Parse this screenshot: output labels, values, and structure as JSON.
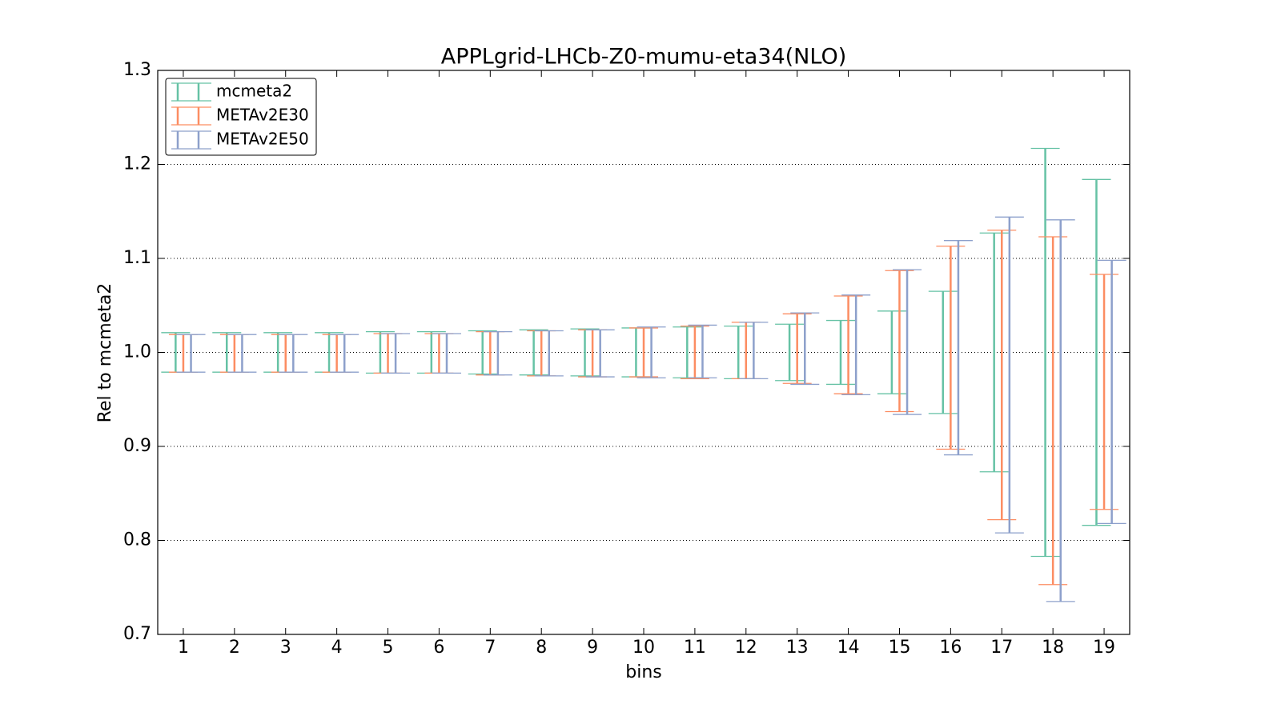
{
  "chart_data": {
    "type": "errorbar",
    "title": "APPLgrid-LHCb-Z0-mumu-eta34(NLO)",
    "x_label": "bins",
    "y_label": "Rel to mcmeta2",
    "x": [
      1,
      2,
      3,
      4,
      5,
      6,
      7,
      8,
      9,
      10,
      11,
      12,
      13,
      14,
      15,
      16,
      17,
      18,
      19
    ],
    "xlim": [
      0.5,
      19.5
    ],
    "xticks": [
      1,
      2,
      3,
      4,
      5,
      6,
      7,
      8,
      9,
      10,
      11,
      12,
      13,
      14,
      15,
      16,
      17,
      18,
      19
    ],
    "ylim": [
      0.7,
      1.3
    ],
    "yticks": [
      {
        "value": 0.7,
        "label": "0.7"
      },
      {
        "value": 0.8,
        "label": "0.8"
      },
      {
        "value": 0.9,
        "label": "0.9"
      },
      {
        "value": 1.0,
        "label": "1.0"
      },
      {
        "value": 1.1,
        "label": "1.1"
      },
      {
        "value": 1.2,
        "label": "1.2"
      },
      {
        "value": 1.3,
        "label": "1.3"
      }
    ],
    "grid": true,
    "legend": "upper left",
    "series": [
      {
        "name": "mcmeta2",
        "color": "#66c2a5",
        "values": [
          1,
          1,
          1,
          1,
          1,
          1,
          1,
          1,
          1,
          1,
          1,
          1,
          1,
          1,
          1,
          1,
          1,
          1,
          1
        ],
        "errors": [
          0.021,
          0.021,
          0.021,
          0.021,
          0.022,
          0.022,
          0.023,
          0.024,
          0.025,
          0.026,
          0.027,
          0.028,
          0.03,
          0.034,
          0.044,
          0.065,
          0.127,
          0.217,
          0.184
        ]
      },
      {
        "name": "METAv2E30",
        "color": "#fc8d62",
        "values": [
          0.999,
          0.999,
          0.999,
          0.999,
          0.999,
          0.999,
          0.999,
          0.999,
          0.999,
          1.0,
          1.0,
          1.002,
          1.004,
          1.008,
          1.012,
          1.005,
          0.976,
          0.938,
          0.958
        ],
        "errors": [
          0.02,
          0.02,
          0.02,
          0.02,
          0.021,
          0.021,
          0.023,
          0.024,
          0.025,
          0.026,
          0.028,
          0.03,
          0.037,
          0.052,
          0.075,
          0.108,
          0.154,
          0.185,
          0.125
        ]
      },
      {
        "name": "METAv2E50",
        "color": "#8da0cb",
        "values": [
          0.999,
          0.999,
          0.999,
          0.999,
          0.999,
          0.999,
          0.999,
          0.999,
          0.999,
          1.0,
          1.001,
          1.002,
          1.004,
          1.008,
          1.011,
          1.005,
          0.976,
          0.938,
          0.958
        ],
        "errors": [
          0.02,
          0.02,
          0.02,
          0.02,
          0.021,
          0.021,
          0.023,
          0.024,
          0.025,
          0.027,
          0.028,
          0.03,
          0.038,
          0.053,
          0.077,
          0.114,
          0.168,
          0.203,
          0.14
        ]
      }
    ]
  }
}
